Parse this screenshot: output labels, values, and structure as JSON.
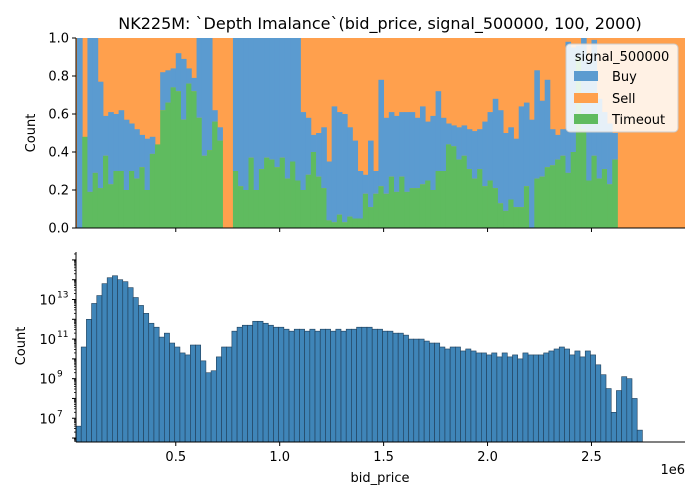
{
  "chart_data": [
    {
      "type": "area",
      "title": "NK225M: `Depth Imalance`(bid_price, signal_500000, 100, 2000)",
      "ylabel": "Count",
      "xlabel": "",
      "ylim": [
        0,
        1
      ],
      "yticks": [
        "0.0",
        "0.2",
        "0.4",
        "0.6",
        "0.8",
        "1.0"
      ],
      "legend": {
        "title": "signal_500000",
        "placement": "top-right",
        "entries": [
          "Buy",
          "Sell",
          "Timeout"
        ]
      },
      "colors": {
        "Buy": "#5b9bd0",
        "Sell": "#ffa04d",
        "Timeout": "#5fbb5f"
      },
      "x_bin_width": 25000,
      "x_start": 0,
      "timeout_fraction": [
        0.0,
        0.0,
        0.48,
        0.19,
        0.29,
        0.21,
        0.38,
        0.23,
        0.3,
        0.3,
        0.2,
        0.3,
        0.26,
        0.32,
        0.2,
        0.39,
        0.44,
        0.62,
        0.66,
        0.74,
        0.72,
        0.57,
        0.76,
        0.72,
        0.58,
        0.38,
        0.41,
        0.56,
        0.46,
        0.0,
        0.0,
        0.3,
        0.22,
        0.2,
        0.37,
        0.2,
        0.31,
        0.37,
        0.36,
        0.32,
        0.37,
        0.26,
        0.35,
        0.25,
        0.2,
        0.28,
        0.4,
        0.27,
        0.21,
        0.04,
        0.03,
        0.07,
        0.03,
        0.06,
        0.05,
        0.05,
        0.18,
        0.11,
        0.18,
        0.22,
        0.18,
        0.27,
        0.19,
        0.27,
        0.19,
        0.21,
        0.21,
        0.23,
        0.25,
        0.2,
        0.3,
        0.3,
        0.44,
        0.43,
        0.36,
        0.38,
        0.31,
        0.26,
        0.31,
        0.22,
        0.25,
        0.21,
        0.13,
        0.09,
        0.15,
        0.11,
        0.11,
        0.22,
        0.0,
        0.26,
        0.27,
        0.32,
        0.33,
        0.36,
        0.38,
        0.29,
        0.4,
        0.9,
        0.52,
        0.25,
        0.38,
        0.26,
        0.31,
        0.23,
        0.36,
        0.0,
        0.0,
        0.0,
        0.0,
        0.0,
        0.0,
        0.0,
        0.0,
        0.0,
        0.0,
        0.0,
        0.0,
        0.0,
        0.0,
        0.0,
        0.0,
        0.0,
        0.0,
        0.0,
        0.0,
        0.0,
        0.0,
        0.0,
        0.0,
        0.0,
        0.0,
        0.0,
        0.0,
        0.0,
        0.0,
        0.0,
        0.0,
        0.0,
        0.0,
        0.0
      ],
      "buy_plus_timeout_fraction": [
        0.0,
        1.0,
        0.48,
        1.0,
        1.0,
        0.77,
        0.59,
        0.61,
        0.6,
        0.62,
        0.57,
        0.55,
        0.52,
        0.49,
        0.47,
        0.48,
        0.44,
        0.82,
        0.83,
        0.84,
        0.92,
        0.89,
        0.84,
        0.79,
        1.0,
        1.0,
        1.0,
        0.62,
        0.53,
        0.0,
        0.0,
        1.0,
        1.0,
        1.0,
        1.0,
        1.0,
        1.0,
        1.0,
        1.0,
        1.0,
        1.0,
        1.0,
        1.0,
        1.0,
        0.61,
        0.58,
        0.49,
        0.5,
        0.53,
        0.35,
        0.64,
        0.61,
        0.6,
        0.53,
        0.46,
        0.3,
        0.28,
        0.46,
        0.3,
        0.78,
        0.58,
        0.61,
        0.59,
        0.61,
        0.61,
        0.61,
        0.58,
        0.64,
        0.56,
        0.59,
        0.72,
        0.58,
        0.55,
        0.54,
        0.53,
        0.54,
        0.52,
        0.51,
        0.52,
        0.56,
        0.61,
        0.68,
        0.62,
        0.5,
        0.53,
        0.47,
        0.64,
        0.66,
        0.57,
        0.83,
        0.67,
        0.78,
        0.52,
        0.49,
        0.52,
        0.98,
        0.95,
        0.96,
        1.0,
        0.88,
        0.99,
        0.68,
        0.61,
        0.55,
        0.5,
        0.0,
        0.0,
        0.0,
        0.0,
        0.0,
        0.0,
        0.0,
        0.0,
        0.0,
        0.0,
        0.0,
        0.0,
        0.0,
        0.0,
        0.0,
        0.0,
        0.0,
        0.0,
        0.0,
        0.0,
        0.0,
        0.0,
        0.0,
        0.0,
        0.0,
        0.0,
        0.0,
        0.0,
        0.0,
        0.0,
        0.0,
        0.0,
        0.0,
        0.0,
        0.0
      ]
    },
    {
      "type": "bar",
      "title": "",
      "xlabel": "bid_price",
      "ylabel": "Count",
      "yscale": "log",
      "ylim_log10": [
        5.8,
        15.4
      ],
      "yticks": [
        "10^7",
        "10^9",
        "10^11",
        "10^13"
      ],
      "xlim": [
        20000,
        2950000
      ],
      "xticks": [
        "0.5",
        "1.0",
        "1.5",
        "2.0",
        "2.5"
      ],
      "x_multiplier": "1e6",
      "bar_color": "#3f85b8",
      "bin_width": 25000,
      "log10_counts": [
        6.6,
        10.6,
        12.0,
        12.8,
        13.2,
        13.8,
        14.1,
        14.2,
        14.0,
        13.9,
        13.6,
        13.1,
        12.7,
        12.3,
        11.8,
        11.6,
        11.1,
        11.3,
        10.8,
        10.6,
        10.3,
        10.2,
        10.7,
        10.7,
        9.9,
        9.3,
        9.4,
        10.1,
        10.6,
        10.6,
        11.4,
        11.6,
        11.7,
        11.7,
        11.9,
        11.9,
        11.8,
        11.7,
        11.6,
        11.6,
        11.5,
        11.4,
        11.5,
        11.5,
        11.4,
        11.5,
        11.4,
        11.5,
        11.5,
        11.4,
        11.5,
        11.4,
        11.5,
        11.5,
        11.6,
        11.6,
        11.6,
        11.5,
        11.5,
        11.4,
        11.4,
        11.3,
        11.3,
        11.2,
        11.0,
        11.0,
        11.0,
        10.9,
        10.8,
        10.8,
        10.6,
        10.5,
        10.6,
        10.6,
        10.4,
        10.5,
        10.4,
        10.3,
        10.3,
        10.2,
        10.3,
        10.1,
        10.3,
        10.1,
        10.2,
        10.0,
        10.3,
        10.2,
        10.2,
        10.2,
        10.3,
        10.4,
        10.5,
        10.6,
        10.5,
        10.2,
        10.4,
        10.1,
        10.4,
        10.2,
        9.7,
        9.2,
        8.5,
        7.3,
        8.4,
        9.1,
        9.0,
        8.0,
        6.4,
        5.6
      ]
    }
  ]
}
